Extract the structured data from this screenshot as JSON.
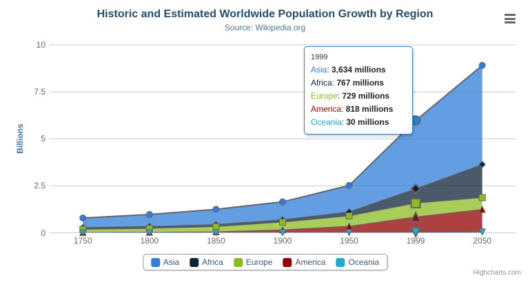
{
  "chart": {
    "title": "Historic and Estimated Worldwide Population Growth by Region",
    "subtitle": "Source: Wikipedia.org",
    "credits": "Highcharts.com"
  },
  "chart_data": {
    "type": "area",
    "stacking": "normal",
    "title": "Historic and Estimated Worldwide Population Growth by Region",
    "subtitle": "Source: Wikipedia.org",
    "categories": [
      "1750",
      "1800",
      "1850",
      "1900",
      "1950",
      "1999",
      "2050"
    ],
    "unit": "millions",
    "series": [
      {
        "name": "Asia",
        "color": "#2f7ed8",
        "marker": "circle",
        "values": [
          502,
          635,
          809,
          947,
          1402,
          3634,
          5268
        ]
      },
      {
        "name": "Africa",
        "color": "#0d233a",
        "marker": "diamond",
        "values": [
          106,
          107,
          111,
          133,
          221,
          767,
          1766
        ]
      },
      {
        "name": "Europe",
        "color": "#8bbc21",
        "marker": "square",
        "values": [
          163,
          203,
          276,
          408,
          547,
          729,
          628
        ]
      },
      {
        "name": "America",
        "color": "#910000",
        "marker": "triangle",
        "values": [
          18,
          31,
          54,
          156,
          339,
          818,
          1201
        ]
      },
      {
        "name": "Oceania",
        "color": "#1aadce",
        "marker": "triangle-down",
        "values": [
          2,
          2,
          2,
          6,
          13,
          30,
          46
        ]
      }
    ],
    "xlabel": "",
    "ylabel": "Billions",
    "yAxis": {
      "title": "Billions",
      "ticks": [
        "0",
        "2.5",
        "5",
        "7.5",
        "10"
      ],
      "tick_values": [
        0,
        2.5,
        5,
        7.5,
        10
      ],
      "max": 10
    },
    "grid": true,
    "legend_position": "bottom",
    "hover_category_index": 5,
    "style": {
      "area_line_color": "#666666",
      "fill_opacity": 0.75,
      "gridline_color": "#C8C8C8",
      "axis_line_color": "#C0D0E0"
    }
  },
  "tooltip": {
    "header": "1999",
    "rows": [
      {
        "name": "Asia",
        "value": "3,634 millions",
        "color": "#2f7ed8"
      },
      {
        "name": "Africa",
        "value": "767 millions",
        "color": "#0d233a"
      },
      {
        "name": "Europe",
        "value": "729 millions",
        "color": "#8bbc21"
      },
      {
        "name": "America",
        "value": "818 millions",
        "color": "#910000"
      },
      {
        "name": "Oceania",
        "value": "30 millions",
        "color": "#1aadce"
      }
    ]
  }
}
